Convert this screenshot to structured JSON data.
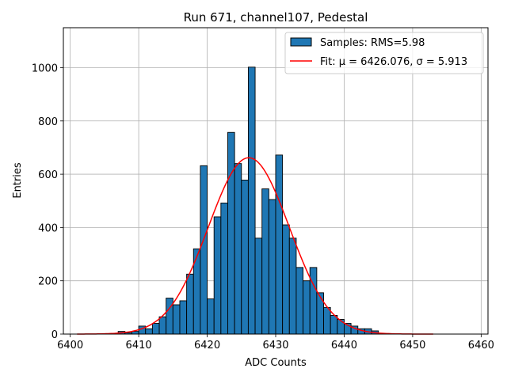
{
  "chart_data": {
    "type": "histogram",
    "title": "Run 671, channel107, Pedestal",
    "xlabel": "ADC Counts",
    "ylabel": "Entries",
    "xlim": [
      6399.0,
      6461.0
    ],
    "ylim": [
      0,
      1150
    ],
    "xticks": [
      6400,
      6410,
      6420,
      6430,
      6440,
      6450,
      6460
    ],
    "yticks": [
      0,
      200,
      400,
      600,
      800,
      1000
    ],
    "grid": true,
    "legend_position": "top-right",
    "bin_width": 1,
    "bins": [
      {
        "x": 6407,
        "value": 10
      },
      {
        "x": 6408,
        "value": 5
      },
      {
        "x": 6409,
        "value": 10
      },
      {
        "x": 6410,
        "value": 30
      },
      {
        "x": 6411,
        "value": 20
      },
      {
        "x": 6412,
        "value": 40
      },
      {
        "x": 6413,
        "value": 65
      },
      {
        "x": 6414,
        "value": 135
      },
      {
        "x": 6415,
        "value": 110
      },
      {
        "x": 6416,
        "value": 125
      },
      {
        "x": 6417,
        "value": 225
      },
      {
        "x": 6418,
        "value": 320
      },
      {
        "x": 6419,
        "value": 632
      },
      {
        "x": 6420,
        "value": 132
      },
      {
        "x": 6421,
        "value": 440
      },
      {
        "x": 6422,
        "value": 492
      },
      {
        "x": 6423,
        "value": 757
      },
      {
        "x": 6424,
        "value": 640
      },
      {
        "x": 6425,
        "value": 578
      },
      {
        "x": 6426,
        "value": 1002
      },
      {
        "x": 6427,
        "value": 360
      },
      {
        "x": 6428,
        "value": 545
      },
      {
        "x": 6429,
        "value": 505
      },
      {
        "x": 6430,
        "value": 672
      },
      {
        "x": 6431,
        "value": 410
      },
      {
        "x": 6432,
        "value": 360
      },
      {
        "x": 6433,
        "value": 250
      },
      {
        "x": 6434,
        "value": 200
      },
      {
        "x": 6435,
        "value": 250
      },
      {
        "x": 6436,
        "value": 155
      },
      {
        "x": 6437,
        "value": 100
      },
      {
        "x": 6438,
        "value": 70
      },
      {
        "x": 6439,
        "value": 55
      },
      {
        "x": 6440,
        "value": 40
      },
      {
        "x": 6441,
        "value": 30
      },
      {
        "x": 6442,
        "value": 20
      },
      {
        "x": 6443,
        "value": 20
      },
      {
        "x": 6444,
        "value": 12
      }
    ],
    "fit": {
      "mu": 6426.076,
      "sigma": 5.913,
      "amplitude": 662,
      "x_range": [
        6401,
        6453
      ]
    },
    "legend": [
      {
        "label": "Samples: RMS=5.98",
        "type": "patch",
        "color": "#1f77b4"
      },
      {
        "label": "Fit: μ = 6426.076, σ = 5.913",
        "type": "line",
        "color": "#ff0000"
      }
    ],
    "colors": {
      "bar": "#1f77b4",
      "bar_edge": "#000000",
      "fit": "#ff0000",
      "grid": "#b0b0b0"
    }
  }
}
